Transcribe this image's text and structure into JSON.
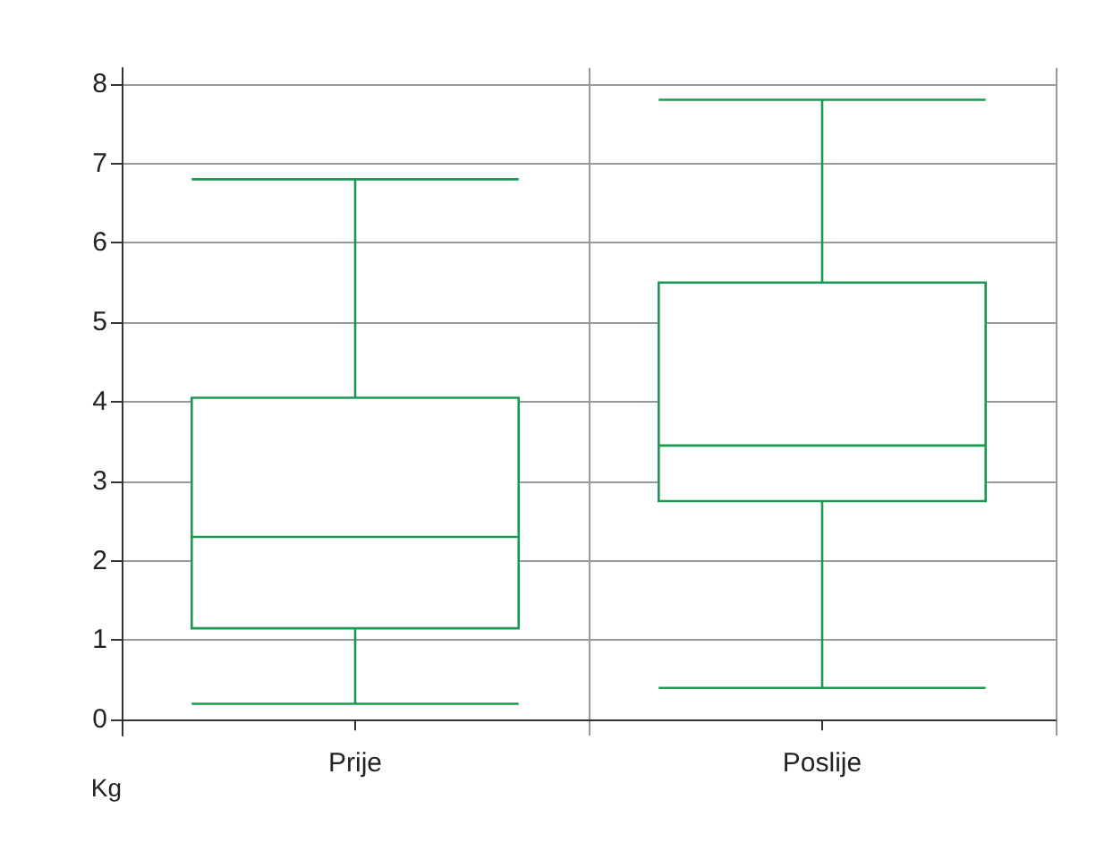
{
  "chart_data": {
    "type": "box",
    "categories": [
      "Prije",
      "Poslije"
    ],
    "ylabel": "Kg",
    "color": "#1a9a50",
    "boxes": [
      {
        "low": 0.2,
        "q1": 1.15,
        "median": 2.3,
        "q3": 4.05,
        "high": 6.8
      },
      {
        "low": 0.4,
        "q1": 2.75,
        "median": 3.45,
        "q3": 5.5,
        "high": 7.8
      }
    ],
    "ylim": [
      -0.2,
      8.2
    ],
    "yticks": [
      0,
      1,
      2,
      3,
      4,
      5,
      6,
      7,
      8
    ],
    "grid": true
  }
}
